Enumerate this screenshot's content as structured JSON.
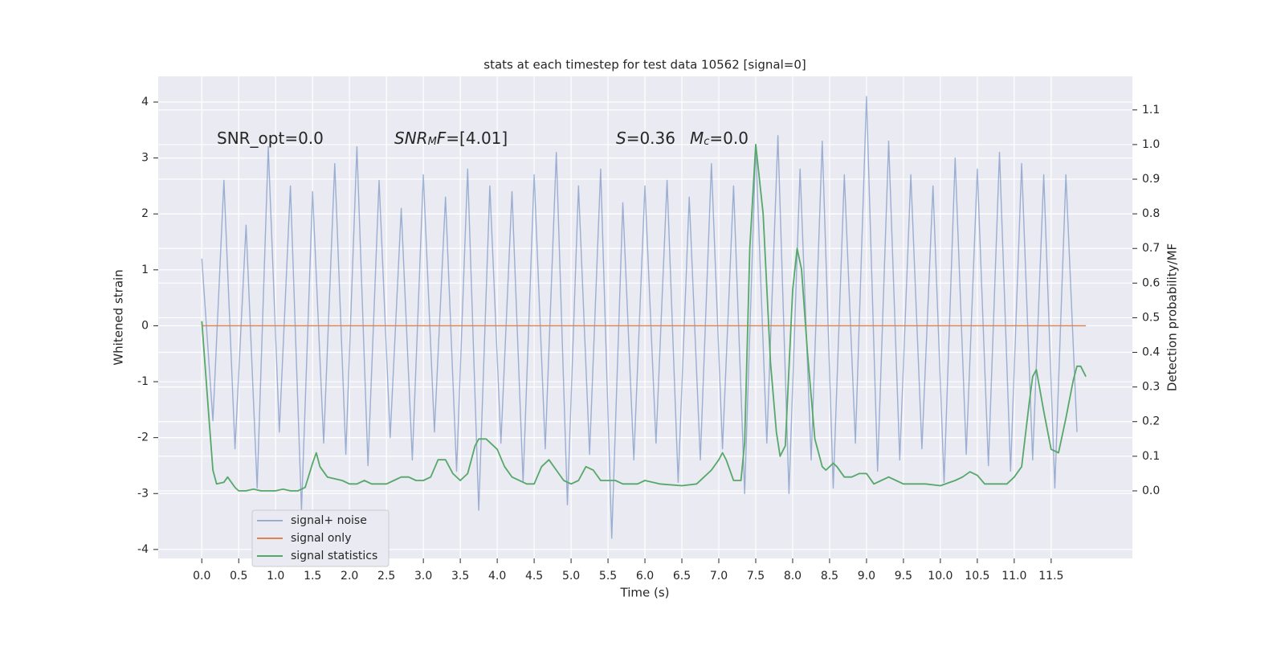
{
  "chart_data": {
    "type": "line",
    "title": "stats at each timestep for test data 10562 [signal=0]",
    "x_label": "Time (s)",
    "y_label": "Whitened strain",
    "y2_label": "Detection probability/MF",
    "xlim": [
      -0.59,
      12.6
    ],
    "ylim": [
      -4.16,
      4.46
    ],
    "y2lim": [
      -0.195,
      1.197
    ],
    "xticks": [
      {
        "value": 0,
        "label": "0.0"
      },
      0.5,
      {
        "value": 1,
        "label": "1.0"
      },
      1.5,
      {
        "value": 2,
        "label": "2.0"
      },
      2.5,
      {
        "value": 3,
        "label": "3.0"
      },
      3.5,
      {
        "value": 4,
        "label": "4.0"
      },
      4.5,
      {
        "value": 5,
        "label": "5.0"
      },
      5.5,
      {
        "value": 6,
        "label": "6.0"
      },
      6.5,
      {
        "value": 7,
        "label": "7.0"
      },
      7.5,
      {
        "value": 8,
        "label": "8.0"
      },
      8.5,
      {
        "value": 9,
        "label": "9.0"
      },
      9.5,
      {
        "value": 10,
        "label": "10.0"
      },
      10.5,
      {
        "value": 11,
        "label": "11.0"
      },
      11.5
    ],
    "yticks": [
      -4,
      -3,
      -2,
      -1,
      0,
      1,
      2,
      3,
      4
    ],
    "y2ticks": [
      {
        "value": 0,
        "label": "0.0"
      },
      0.1,
      0.2,
      0.3,
      0.4,
      0.5,
      0.6,
      0.7,
      0.8,
      0.9,
      {
        "value": 1,
        "label": "1.0"
      },
      1.1
    ],
    "grid": true,
    "legend": "lower left",
    "annotations": [
      [
        {
          "text": "SNR_opt=0.0"
        }
      ],
      [
        {
          "text": "SNR",
          "italic": true
        },
        {
          "text": "M",
          "italic": true,
          "sub": true
        },
        {
          "text": "F",
          "italic": true
        },
        {
          "text": "=[4.01]"
        }
      ],
      [
        {
          "text": "S",
          "italic": true
        },
        {
          "text": "=0.36"
        }
      ],
      [
        {
          "text": "M",
          "italic": true
        },
        {
          "text": "c",
          "italic": true,
          "sub": true
        },
        {
          "text": "=0.0"
        }
      ]
    ],
    "series": [
      {
        "name": "signal+ noise",
        "color": "#4c72b0",
        "opacity": 0.5,
        "x": [
          0,
          0.15,
          0.3,
          0.45,
          0.6,
          0.75,
          0.9,
          1.05,
          1.2,
          1.35,
          1.5,
          1.65,
          1.8,
          1.95,
          2.1,
          2.25,
          2.4,
          2.55,
          2.7,
          2.85,
          3,
          3.15,
          3.3,
          3.45,
          3.6,
          3.75,
          3.9,
          4.05,
          4.2,
          4.35,
          4.5,
          4.65,
          4.8,
          4.95,
          5.1,
          5.25,
          5.4,
          5.55,
          5.7,
          5.85,
          6,
          6.15,
          6.3,
          6.45,
          6.6,
          6.75,
          6.9,
          7.05,
          7.2,
          7.35,
          7.5,
          7.65,
          7.8,
          7.95,
          8.1,
          8.25,
          8.4,
          8.55,
          8.7,
          8.85,
          9,
          9.15,
          9.3,
          9.45,
          9.6,
          9.75,
          9.9,
          10.05,
          10.2,
          10.35,
          10.5,
          10.65,
          10.8,
          10.95,
          11.1,
          11.25,
          11.4,
          11.55,
          11.7,
          11.85
        ],
        "values": [
          1.2,
          -1.7,
          2.6,
          -2.2,
          1.8,
          -2.9,
          3.2,
          -1.9,
          2.5,
          -3.3,
          2.4,
          -2.1,
          2.9,
          -2.3,
          3.2,
          -2.5,
          2.6,
          -2.0,
          2.1,
          -2.4,
          2.7,
          -1.9,
          2.3,
          -2.6,
          2.8,
          -3.3,
          2.5,
          -2.1,
          2.4,
          -2.8,
          2.7,
          -2.2,
          3.1,
          -3.2,
          2.5,
          -2.3,
          2.8,
          -3.8,
          2.2,
          -2.4,
          2.5,
          -2.1,
          2.6,
          -2.8,
          2.3,
          -2.4,
          2.9,
          -2.2,
          2.5,
          -3.0,
          3.2,
          -2.1,
          3.4,
          -3.0,
          2.8,
          -2.4,
          3.3,
          -2.9,
          2.7,
          -2.1,
          4.1,
          -2.6,
          3.3,
          -2.4,
          2.7,
          -2.2,
          2.5,
          -2.8,
          3.0,
          -2.3,
          2.8,
          -2.5,
          3.1,
          -2.6,
          2.9,
          -2.4,
          2.7,
          -2.9,
          2.7,
          -1.9
        ]
      },
      {
        "name": "signal only",
        "color": "#dd8452",
        "opacity": 1,
        "x": [
          0,
          11.97
        ],
        "values": [
          0,
          0
        ]
      },
      {
        "name": "signal statistics",
        "color": "#55a868",
        "opacity": 1,
        "axis": "y2",
        "x": [
          0,
          0.1,
          0.15,
          0.2,
          0.3,
          0.35,
          0.45,
          0.5,
          0.6,
          0.7,
          0.8,
          1.0,
          1.1,
          1.2,
          1.3,
          1.4,
          1.5,
          1.55,
          1.6,
          1.7,
          1.9,
          2.0,
          2.1,
          2.2,
          2.3,
          2.5,
          2.6,
          2.7,
          2.8,
          2.9,
          3.0,
          3.1,
          3.2,
          3.3,
          3.4,
          3.5,
          3.6,
          3.7,
          3.75,
          3.85,
          4.0,
          4.1,
          4.2,
          4.4,
          4.5,
          4.6,
          4.7,
          4.8,
          4.9,
          5.0,
          5.1,
          5.2,
          5.3,
          5.4,
          5.6,
          5.7,
          5.9,
          6.0,
          6.2,
          6.5,
          6.7,
          6.8,
          6.9,
          7.0,
          7.05,
          7.1,
          7.2,
          7.3,
          7.35,
          7.42,
          7.5,
          7.6,
          7.7,
          7.78,
          7.83,
          7.9,
          8.0,
          8.06,
          8.12,
          8.2,
          8.3,
          8.4,
          8.45,
          8.55,
          8.6,
          8.7,
          8.8,
          8.9,
          9.0,
          9.1,
          9.2,
          9.3,
          9.4,
          9.5,
          9.8,
          10.0,
          10.2,
          10.3,
          10.4,
          10.5,
          10.6,
          10.7,
          10.9,
          11.0,
          11.1,
          11.2,
          11.25,
          11.3,
          11.4,
          11.5,
          11.6,
          11.7,
          11.8,
          11.85,
          11.9,
          11.97
        ],
        "values": [
          0.49,
          0.2,
          0.06,
          0.02,
          0.025,
          0.04,
          0.01,
          0.0,
          0.0,
          0.005,
          0.0,
          0.0,
          0.005,
          0.0,
          0.0,
          0.01,
          0.08,
          0.11,
          0.07,
          0.04,
          0.03,
          0.02,
          0.02,
          0.03,
          0.02,
          0.02,
          0.03,
          0.04,
          0.04,
          0.03,
          0.03,
          0.04,
          0.09,
          0.09,
          0.05,
          0.03,
          0.05,
          0.13,
          0.15,
          0.15,
          0.12,
          0.07,
          0.04,
          0.02,
          0.02,
          0.07,
          0.09,
          0.06,
          0.03,
          0.02,
          0.03,
          0.07,
          0.06,
          0.03,
          0.03,
          0.02,
          0.02,
          0.03,
          0.02,
          0.015,
          0.02,
          0.04,
          0.06,
          0.09,
          0.11,
          0.09,
          0.03,
          0.03,
          0.14,
          0.7,
          1.0,
          0.8,
          0.37,
          0.17,
          0.1,
          0.13,
          0.58,
          0.7,
          0.64,
          0.4,
          0.15,
          0.07,
          0.06,
          0.08,
          0.07,
          0.04,
          0.04,
          0.05,
          0.05,
          0.02,
          0.03,
          0.04,
          0.03,
          0.02,
          0.02,
          0.015,
          0.03,
          0.04,
          0.055,
          0.045,
          0.02,
          0.02,
          0.02,
          0.04,
          0.07,
          0.25,
          0.33,
          0.35,
          0.23,
          0.12,
          0.11,
          0.21,
          0.32,
          0.36,
          0.36,
          0.33
        ]
      }
    ]
  }
}
